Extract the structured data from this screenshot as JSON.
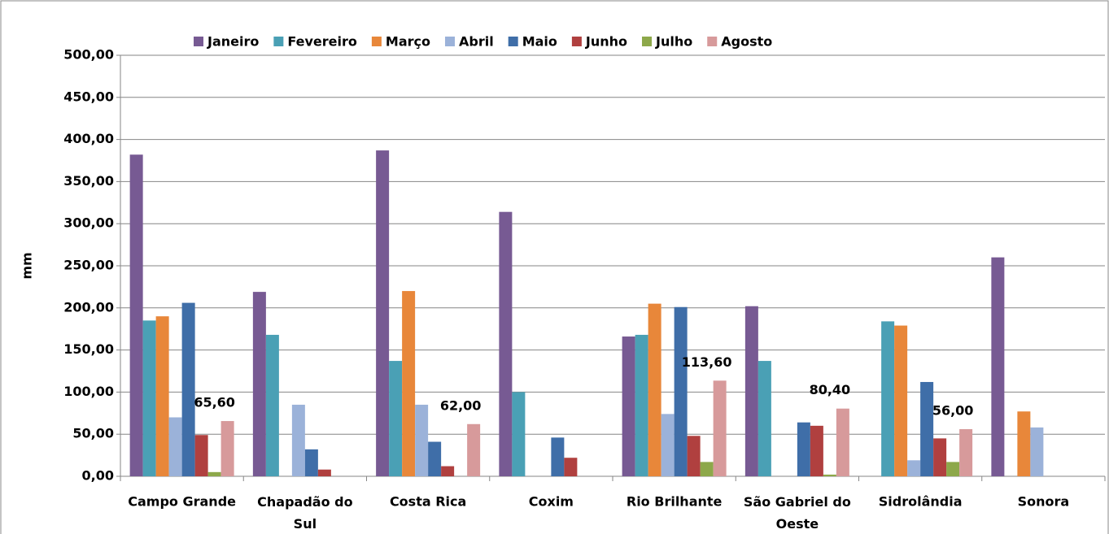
{
  "chart_data": {
    "type": "bar",
    "y_label": "mm",
    "categories": [
      "Campo Grande",
      "Chapadão do Sul",
      "Costa Rica",
      "Coxim",
      "Rio Brilhante",
      "São Gabriel do Oeste",
      "Sidrolândia",
      "Sonora"
    ],
    "series": [
      {
        "name": "Janeiro",
        "color": "#775a93",
        "values": [
          382,
          219,
          387,
          314,
          166,
          202,
          0,
          260
        ]
      },
      {
        "name": "Fevereiro",
        "color": "#4aa0b5",
        "values": [
          185,
          168,
          137,
          100,
          168,
          137,
          184,
          0
        ]
      },
      {
        "name": "Março",
        "color": "#e8873a",
        "values": [
          190,
          0,
          220,
          0,
          205,
          0,
          179,
          77
        ]
      },
      {
        "name": "Abril",
        "color": "#9bb2d9",
        "values": [
          70,
          85,
          85,
          0,
          74,
          0,
          19,
          58
        ]
      },
      {
        "name": "Maio",
        "color": "#3f6ea8",
        "values": [
          206,
          32,
          41,
          46,
          201,
          64,
          112,
          0
        ]
      },
      {
        "name": "Junho",
        "color": "#b0403f",
        "values": [
          49,
          8,
          12,
          22,
          48,
          60,
          45,
          0
        ]
      },
      {
        "name": "Julho",
        "color": "#8da84a",
        "values": [
          5,
          0,
          0,
          0,
          17,
          2,
          17,
          0
        ]
      },
      {
        "name": "Agosto",
        "color": "#d79a9b",
        "values": [
          65.6,
          0,
          62,
          0,
          113.6,
          80.4,
          56,
          0
        ],
        "value_labels": [
          "65,60",
          null,
          "62,00",
          null,
          "113,60",
          "80,40",
          "56,00",
          null
        ]
      }
    ],
    "ylim": [
      0,
      500
    ],
    "yticks": [
      {
        "value": 0,
        "label": "0,00"
      },
      {
        "value": 50,
        "label": "50,00"
      },
      {
        "value": 100,
        "label": "100,00"
      },
      {
        "value": 150,
        "label": "150,00"
      },
      {
        "value": 200,
        "label": "200,00"
      },
      {
        "value": 250,
        "label": "250,00"
      },
      {
        "value": 300,
        "label": "300,00"
      },
      {
        "value": 350,
        "label": "350,00"
      },
      {
        "value": 400,
        "label": "400,00"
      },
      {
        "value": 450,
        "label": "450,00"
      },
      {
        "value": 500,
        "label": "500,00"
      }
    ],
    "grid": true,
    "legend": "top"
  }
}
